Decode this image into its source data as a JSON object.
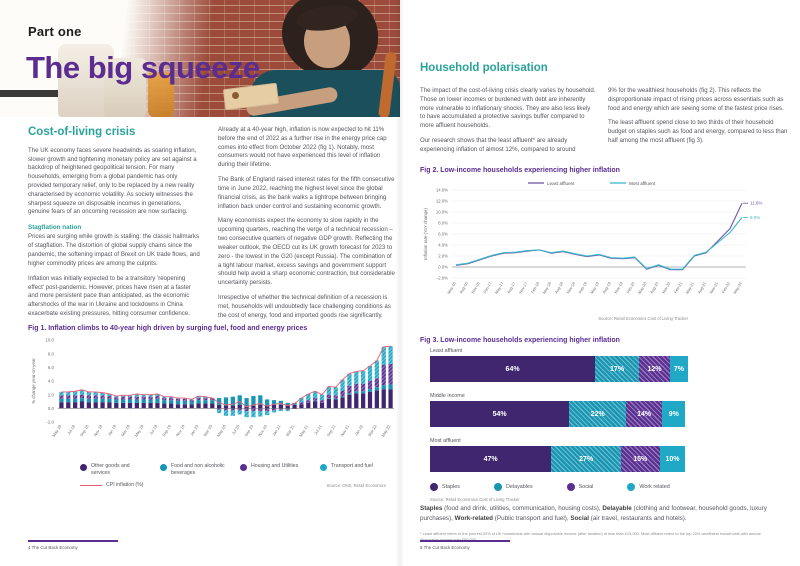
{
  "doc": {
    "left_page": {
      "kicker": "Part one",
      "title": "The big squeeze",
      "section_heading": "Cost-of-living crisis",
      "col1_p1": "The UK economy faces severe headwinds as soaring inflation, slower growth and tightening monetary policy are set against a backdrop of heightened geopolitical tension. For many households, emerging from a global pandemic has only provided temporary relief, only to be replaced by a new reality characterised by economic volatility. As society witnesses the sharpest squeeze on disposable incomes in generations, genuine fears of an oncoming recession are now surfacing.",
      "subheading": "Stagflation nation",
      "col1_p2": "Prices are surging while growth is stalling: the classic hallmarks of stagflation. The distortion of global supply chains since the pandemic, the softening impact of Brexit on UK trade flows, and higher commodity prices are among the culprits.",
      "col1_p3": "Inflation was initially expected to be a transitory 'reopening effect' post-pandemic. However, prices have risen at a faster and more persistent pace than anticipated, as the economic aftershocks of the war in Ukraine and lockdowns in China exacerbate existing pressures, hitting consumer confidence.",
      "col2_p1": "Already at a 40-year high, inflation is now expected to hit 11% before the end of 2022 as a further rise in the energy price cap comes into effect from October 2022 (fig 1). Notably, most consumers would not have experienced this level of inflation during their lifetime.",
      "col2_p2": "The Bank of England raised interest rates for the fifth consecutive time in June 2022, reaching the highest level since the global financial crisis, as the bank walks a tightrope between bringing inflation back under control and sustaining economic growth.",
      "col2_p3": "Many economists expect the economy to slow rapidly in the upcoming quarters, reaching the verge of a technical recession – two consecutive quarters of negative GDP growth. Reflecting the weaker outlook, the OECD cut its UK growth forecast for 2023 to zero - the lowest in the G20 (except Russia). The combination of a tight labour market, excess savings and government support should help avoid a sharp economic contraction, but considerable uncertainty persists.",
      "col2_p4": "Irrespective of whether the technical definition of a recession is met, households will undoubtedly face challenging conditions as the cost of energy, food and imported goods rise significantly.",
      "footer": {
        "page_number": "4",
        "doc_title": "The Cut Back Economy"
      }
    },
    "right_page": {
      "section_heading": "Household polarisation",
      "col1_p1": "The impact of the cost-of-living crisis clearly varies by household. Those on lower incomes or burdened with debt are inherently more vulnerable to inflationary shocks. They are also less likely to have accumulated a protective savings buffer compared to more affluent households.",
      "col1_p2": "Our research shows that the least affluent* are already experiencing inflation of almost 12%, compared to around",
      "col2_p1": "9% for the wealthiest households (fig 2). This reflects the disproportionate impact of rising prices across essentials such as food and energy which are seeing some of the fastest price rises.",
      "col2_p2": "The least affluent spend close to two thirds of their household budget on staples such as food and energy, compared to less than half among the most affluent (fig 3).",
      "category_defs": [
        {
          "term": "Staples",
          "desc": " (food and drink, utilities, communication, housing costs), "
        },
        {
          "term": "Delayable",
          "desc": " (clothing and footwear, household goods, luxury purchases), "
        },
        {
          "term": "Work-related",
          "desc": " (Public transport and fuel), "
        },
        {
          "term": "Social",
          "desc": " (air travel, restaurants and hotels)."
        }
      ],
      "footnote": "* Least affluent refers to the poorest 20% of UK households with annual disposable income (after taxation) of less than £15,000. Most affluent refers to the top 20% wealthiest households with annual disposable income over £60,000.",
      "footer": {
        "page_number": "5",
        "doc_title": "The Cut Back Economy"
      }
    }
  },
  "chart_data": [
    {
      "id": "fig1",
      "type": "bar",
      "stacked": true,
      "title": "Fig 1. Inflation climbs to 40-year high driven by surging fuel, food and energy prices",
      "xlabel": "",
      "ylabel": "% change year-on-year",
      "ylim": [
        -2,
        10
      ],
      "yticks": [
        "10.0",
        "8.0",
        "6.0",
        "4.0",
        "2.0",
        "0.0",
        "-2.0"
      ],
      "grid": false,
      "legend_position": "bottom",
      "label_every": 2,
      "categories": [
        "May 18",
        "Jun 18",
        "Jul 18",
        "Aug 18",
        "Sep 18",
        "Oct 18",
        "Nov 18",
        "Dec 18",
        "Jan 19",
        "Feb 19",
        "Mar 19",
        "Apr 19",
        "May 19",
        "Jun 19",
        "Jul 19",
        "Aug 19",
        "Sep 19",
        "Oct 19",
        "Nov 19",
        "Dec 19",
        "Jan 20",
        "Feb 20",
        "Mar 20",
        "Apr 20",
        "May 20",
        "Jun 20",
        "Jul 20",
        "Aug 20",
        "Sep 20",
        "Oct 20",
        "Nov 20",
        "Dec 20",
        "Jan 21",
        "Feb 21",
        "Mar 21",
        "Apr 21",
        "May 21",
        "Jun 21",
        "Jul 21",
        "Aug 21",
        "Sep 21",
        "Oct 21",
        "Nov 21",
        "Dec 21",
        "Jan 22",
        "Feb 22",
        "Mar 22",
        "Apr 22",
        "May 22"
      ],
      "series": [
        {
          "name": "Other goods and services",
          "color": "#40266f",
          "hatch": false,
          "values": [
            0.9,
            0.9,
            0.9,
            1.0,
            0.9,
            0.9,
            0.9,
            0.9,
            0.8,
            0.8,
            0.8,
            0.8,
            0.8,
            0.8,
            0.8,
            0.7,
            0.7,
            0.6,
            0.6,
            0.6,
            0.7,
            0.7,
            0.7,
            0.5,
            0.4,
            0.4,
            0.5,
            0.3,
            0.4,
            0.5,
            0.4,
            0.5,
            0.5,
            0.4,
            0.5,
            0.6,
            0.8,
            1.0,
            0.8,
            1.4,
            1.3,
            1.6,
            2.0,
            2.2,
            2.2,
            2.4,
            2.6,
            2.8,
            2.8
          ]
        },
        {
          "name": "Food and non alcoholic beverages",
          "color": "#1795b2",
          "hatch": false,
          "values": [
            0.5,
            0.5,
            0.5,
            0.5,
            0.5,
            0.5,
            0.5,
            0.5,
            0.5,
            0.5,
            0.5,
            0.5,
            0.5,
            0.5,
            0.6,
            0.5,
            0.5,
            0.5,
            0.5,
            0.4,
            0.5,
            0.5,
            0.5,
            1.0,
            1.2,
            1.3,
            1.4,
            1.2,
            1.4,
            1.4,
            0.9,
            0.7,
            0.6,
            0.4,
            0.3,
            0.0,
            0.0,
            0.1,
            0.0,
            0.1,
            0.1,
            0.1,
            0.2,
            0.3,
            0.3,
            0.4,
            0.5,
            0.6,
            0.7
          ]
        },
        {
          "name": "Housing and Utilities",
          "color": "#5a2f92",
          "hatch": true,
          "values": [
            0.5,
            0.5,
            0.5,
            0.5,
            0.5,
            0.5,
            0.5,
            0.4,
            0.3,
            0.4,
            0.4,
            0.4,
            0.4,
            0.4,
            0.4,
            0.3,
            0.3,
            0.3,
            0.3,
            0.2,
            0.3,
            0.3,
            0.3,
            -0.2,
            -0.3,
            -0.3,
            -0.3,
            -0.4,
            -0.4,
            -0.4,
            -0.4,
            -0.3,
            -0.2,
            -0.2,
            -0.1,
            0.3,
            0.4,
            0.4,
            0.4,
            0.5,
            0.5,
            0.9,
            1.1,
            1.1,
            1.1,
            1.2,
            1.3,
            3.0,
            3.0
          ]
        },
        {
          "name": "Transport and fuel",
          "color": "#1fa9c6",
          "hatch": true,
          "values": [
            0.5,
            0.5,
            0.6,
            0.7,
            0.5,
            0.5,
            0.4,
            0.3,
            0.2,
            0.2,
            0.2,
            0.4,
            0.3,
            0.3,
            0.3,
            0.2,
            0.2,
            0.1,
            0.1,
            0.1,
            0.3,
            0.2,
            0.0,
            -0.5,
            -0.8,
            -0.8,
            -0.6,
            -0.9,
            -0.9,
            -0.8,
            -0.6,
            -0.3,
            -0.2,
            -0.2,
            0.0,
            0.6,
            0.9,
            1.0,
            0.8,
            1.2,
            1.2,
            1.6,
            1.8,
            1.8,
            1.9,
            2.2,
            2.6,
            2.6,
            2.6
          ]
        }
      ],
      "line": {
        "name": "CPI inflation (%)",
        "color": "#ee5a71",
        "values": [
          2.4,
          2.4,
          2.5,
          2.7,
          2.4,
          2.4,
          2.3,
          2.1,
          1.8,
          1.9,
          1.9,
          2.1,
          2.0,
          2.0,
          2.1,
          1.7,
          1.7,
          1.5,
          1.5,
          1.3,
          1.8,
          1.7,
          1.5,
          0.8,
          0.5,
          0.6,
          1.0,
          0.2,
          0.5,
          0.7,
          0.3,
          0.6,
          0.7,
          0.4,
          0.7,
          1.5,
          2.1,
          2.5,
          2.0,
          3.2,
          3.1,
          4.2,
          5.1,
          5.4,
          5.5,
          6.2,
          7.0,
          9.0,
          9.1
        ]
      },
      "source": "Source: ONS, Retail Economics"
    },
    {
      "id": "fig2",
      "type": "line",
      "title": "Fig 2. Low-income households experiencing higher inflation",
      "xlabel": "",
      "ylabel": "Inflation rate (YoY change)",
      "ylim": [
        -2,
        14
      ],
      "yticks": [
        "14.0%",
        "12.0%",
        "10.0%",
        "8.0%",
        "6.0%",
        "4.0%",
        "2.0%",
        "0.0%",
        "-2.0%"
      ],
      "grid": true,
      "legend_position": "top",
      "x": [
        "May-16",
        "Aug-16",
        "Nov-16",
        "Feb-17",
        "May-17",
        "Aug-17",
        "Nov-17",
        "Feb-18",
        "May-18",
        "Aug-18",
        "Nov-18",
        "Feb-19",
        "May-19",
        "Aug-19",
        "Nov-19",
        "Feb-20",
        "May-20",
        "Aug-20",
        "Nov-20",
        "Feb-21",
        "May-21",
        "Aug-21",
        "Nov-21",
        "Feb-22",
        "May-22"
      ],
      "series": [
        {
          "name": "Least affluent",
          "color": "#6f53a5",
          "end_label": "11.6%",
          "values": [
            0.3,
            0.6,
            1.3,
            2.0,
            2.5,
            2.6,
            2.9,
            3.1,
            2.5,
            2.8,
            2.3,
            1.9,
            2.2,
            1.6,
            1.5,
            1.7,
            -0.4,
            0.3,
            -0.5,
            -0.5,
            2.0,
            2.6,
            4.8,
            7.0,
            11.6
          ]
        },
        {
          "name": "Most affluent",
          "color": "#3cb8cc",
          "end_label": "9.0%",
          "values": [
            0.4,
            0.7,
            1.4,
            2.1,
            2.6,
            2.7,
            3.0,
            3.1,
            2.6,
            2.9,
            2.4,
            2.0,
            2.3,
            1.7,
            1.6,
            1.8,
            -0.3,
            0.4,
            -0.4,
            -0.4,
            2.1,
            2.7,
            4.5,
            6.3,
            9.0
          ]
        }
      ],
      "source": "Source: Retail Economics Cost of Living Tracker"
    },
    {
      "id": "fig3",
      "type": "bar",
      "orientation": "horizontal",
      "stacked": true,
      "title": "Fig 3. Low-income households experiencing higher inflation",
      "categories": [
        "Least affluent",
        "Middle income",
        "Most affluent"
      ],
      "series": [
        {
          "name": "Staples",
          "color": "#40266f",
          "hatch": false,
          "values": [
            64,
            54,
            47
          ]
        },
        {
          "name": "Delayables",
          "color": "#1795b2",
          "hatch": true,
          "values": [
            17,
            22,
            27
          ]
        },
        {
          "name": "Social",
          "color": "#5a2f92",
          "hatch": true,
          "values": [
            12,
            14,
            15
          ]
        },
        {
          "name": "Work related",
          "color": "#1fa9c6",
          "hatch": false,
          "values": [
            7,
            9,
            10
          ]
        }
      ],
      "value_suffix": "%",
      "source": "Source: Retail Economics Cost of Living Tracker"
    }
  ]
}
